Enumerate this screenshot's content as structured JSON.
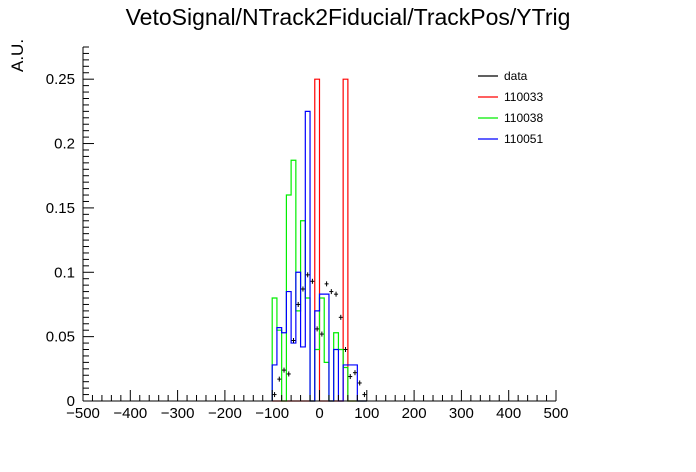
{
  "chart_data": {
    "type": "histogram",
    "title": "VetoSignal/NTrack2Fiducial/TrackPos/YTrig",
    "xlabel": "",
    "ylabel": "A.U.",
    "xlim": [
      -500,
      500
    ],
    "ylim": [
      0,
      0.275
    ],
    "x_ticks": [
      -500,
      -400,
      -300,
      -200,
      -100,
      0,
      100,
      200,
      300,
      400,
      500
    ],
    "y_ticks": [
      0,
      0.05,
      0.1,
      0.15,
      0.2,
      0.25
    ],
    "x_tick_labels": [
      "−500",
      "−400",
      "−300",
      "−200",
      "−100",
      "0",
      "100",
      "200",
      "300",
      "400",
      "500"
    ],
    "y_tick_labels": [
      "0",
      "0.05",
      "0.1",
      "0.15",
      "0.2",
      "0.25"
    ],
    "bin_edges": [
      -100,
      -90,
      -80,
      -70,
      -60,
      -50,
      -40,
      -30,
      -20,
      -10,
      0,
      10,
      20,
      30,
      40,
      50,
      60,
      70,
      80,
      90,
      100
    ],
    "legend_position": "top-right",
    "series": [
      {
        "name": "data",
        "kind": "points",
        "color": "#000000",
        "x": [
          -95,
          -85,
          -75,
          -65,
          -55,
          -45,
          -35,
          -25,
          -15,
          -5,
          5,
          15,
          25,
          35,
          45,
          55,
          65,
          75,
          85,
          95
        ],
        "values": [
          0.005,
          0.017,
          0.024,
          0.021,
          0.047,
          0.075,
          0.087,
          0.098,
          0.093,
          0.056,
          0.052,
          0.091,
          0.085,
          0.083,
          0.065,
          0.04,
          0.019,
          0.022,
          0.014,
          0.005
        ]
      },
      {
        "name": "110033",
        "kind": "step",
        "color": "#ff0000",
        "values": [
          0,
          0,
          0,
          0,
          0,
          0,
          0,
          0,
          0,
          0.25,
          0,
          0,
          0,
          0,
          0,
          0.25,
          0,
          0,
          0,
          0
        ]
      },
      {
        "name": "110038",
        "kind": "step",
        "color": "#00ee00",
        "values": [
          0.08,
          0.055,
          0,
          0.16,
          0.187,
          0.07,
          0.14,
          0.08,
          0,
          0.04,
          0.08,
          0.03,
          0,
          0.053,
          0.04,
          0.026,
          0,
          0,
          0,
          0
        ]
      },
      {
        "name": "110051",
        "kind": "step",
        "color": "#0000ff",
        "values": [
          0.028,
          0.057,
          0.053,
          0.085,
          0.045,
          0.1,
          0.042,
          0.225,
          0,
          0.07,
          0.083,
          0.083,
          0,
          0.04,
          0,
          0.028,
          0.028,
          0.028,
          0,
          0
        ]
      }
    ]
  }
}
